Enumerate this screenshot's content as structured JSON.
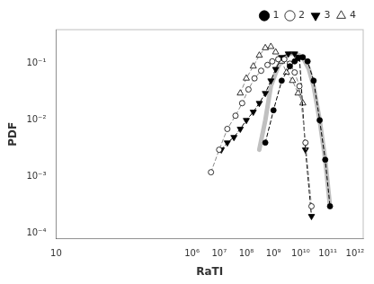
{
  "chart_data": {
    "type": "line",
    "x_label": "RaTI",
    "y_label": "PDF",
    "log": true,
    "grid": false,
    "legend": "upper right",
    "xlim": [
      10,
      2000000000000.0
    ],
    "ylim": [
      8e-05,
      0.4
    ],
    "xticks": [
      {
        "value": 1000000.0,
        "label": "10⁶"
      },
      {
        "value": 10000000.0,
        "label": "10⁷"
      },
      {
        "value": 100000000.0,
        "label": "10⁸"
      },
      {
        "value": 1000000000.0,
        "label": "10⁹"
      },
      {
        "value": 10000000000.0,
        "label": "10¹⁰"
      },
      {
        "value": 100000000000.0,
        "label": "10¹¹"
      },
      {
        "value": 1000000000000.0,
        "label": "10¹²"
      },
      10
    ],
    "yticks": [
      {
        "value": 0.0001,
        "label": "10⁻⁴"
      },
      {
        "value": 0.001,
        "label": "10⁻³"
      },
      {
        "value": 0.01,
        "label": "10⁻²"
      },
      {
        "value": 0.1,
        "label": "10⁻¹"
      }
    ],
    "series": [
      {
        "name": "1",
        "color": "black",
        "marker": "circle",
        "line_style": "dashed",
        "x": [
          500000000.0,
          1000000000.0,
          2000000000.0,
          4000000000.0,
          6000000000.0,
          8000000000.0,
          12000000000.0,
          18000000000.0,
          30000000000.0,
          50000000000.0,
          80000000000.0,
          120000000000.0
        ],
        "values": [
          0.004,
          0.015,
          0.05,
          0.09,
          0.11,
          0.125,
          0.13,
          0.11,
          0.05,
          0.01,
          0.002,
          0.0003
        ]
      },
      {
        "name": "2",
        "color": "#888888",
        "marker": "open_circle",
        "line_style": "dashed",
        "x": [
          5000000.0,
          10000000.0,
          20000000.0,
          40000000.0,
          70000000.0,
          120000000.0,
          200000000.0,
          350000000.0,
          600000000.0,
          900000000.0,
          1500000000.0,
          2500000000.0,
          4000000000.0,
          6000000000.0,
          9000000000.0,
          15000000000.0,
          25000000000.0
        ],
        "values": [
          0.0012,
          0.003,
          0.007,
          0.012,
          0.02,
          0.035,
          0.055,
          0.075,
          0.095,
          0.11,
          0.12,
          0.12,
          0.1,
          0.07,
          0.04,
          0.004,
          0.0003
        ]
      },
      {
        "name": "3",
        "color": "black",
        "marker": "triangle_down",
        "line_style": "dashed",
        "x": [
          12000000.0,
          20000000.0,
          35000000.0,
          60000000.0,
          100000000.0,
          180000000.0,
          300000000.0,
          500000000.0,
          800000000.0,
          1200000000.0,
          2000000000.0,
          3500000000.0,
          6000000000.0,
          9000000000.0,
          15000000000.0,
          25000000000.0
        ],
        "values": [
          0.003,
          0.004,
          0.005,
          0.007,
          0.01,
          0.014,
          0.02,
          0.03,
          0.05,
          0.08,
          0.13,
          0.15,
          0.15,
          0.13,
          0.003,
          0.0002
        ]
      },
      {
        "name": "4",
        "color": "#888888",
        "marker": "open_triangle",
        "line_style": "dashed",
        "x": [
          60000000.0,
          100000000.0,
          180000000.0,
          300000000.0,
          500000000.0,
          800000000.0,
          1200000000.0,
          2000000000.0,
          3000000000.0,
          5000000000.0,
          8000000000.0,
          12000000000.0
        ],
        "values": [
          0.03,
          0.055,
          0.09,
          0.14,
          0.19,
          0.2,
          0.16,
          0.11,
          0.07,
          0.05,
          0.03,
          0.02
        ]
      },
      {
        "color": "#c0c0c0",
        "line_style": "solid",
        "x": [
          300000000.0,
          500000000.0,
          800000000.0,
          1500000000.0,
          2500000000.0,
          4000000000.0,
          6000000000.0,
          9000000000.0,
          13000000000.0,
          20000000000.0,
          30000000000.0,
          50000000000.0,
          80000000000.0,
          120000000000.0
        ],
        "values": [
          0.003,
          0.01,
          0.04,
          0.09,
          0.13,
          0.15,
          0.15,
          0.14,
          0.12,
          0.08,
          0.04,
          0.01,
          0.002,
          0.0003
        ]
      }
    ]
  }
}
